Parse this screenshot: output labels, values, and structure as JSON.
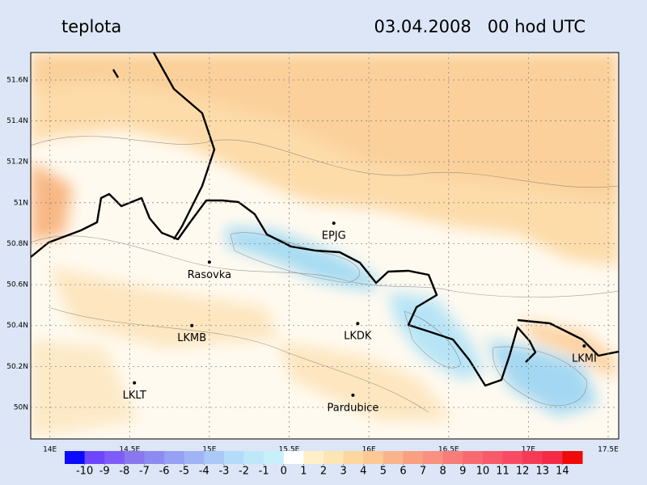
{
  "chart_data": {
    "type": "map",
    "title": "teplota",
    "subtitle": "03.04.2008   00 hod UTC",
    "xlim": [
      13.88,
      17.566
    ],
    "ylim": [
      49.846,
      51.734
    ],
    "xticks": [
      {
        "value": 14,
        "label": "14E"
      },
      {
        "value": 14.5,
        "label": "14.5E"
      },
      {
        "value": 15,
        "label": "15E"
      },
      {
        "value": 15.5,
        "label": "15.5E"
      },
      {
        "value": 16,
        "label": "16E"
      },
      {
        "value": 16.5,
        "label": "16.5E"
      },
      {
        "value": 17,
        "label": "17E"
      },
      {
        "value": 17.5,
        "label": "17.5E"
      }
    ],
    "yticks": [
      {
        "value": 50,
        "label": "50N"
      },
      {
        "value": 50.2,
        "label": "50.2N"
      },
      {
        "value": 50.4,
        "label": "50.4N"
      },
      {
        "value": 50.6,
        "label": "50.6N"
      },
      {
        "value": 50.8,
        "label": "50.8N"
      },
      {
        "value": 51,
        "label": "51N"
      },
      {
        "value": 51.2,
        "label": "51.2N"
      },
      {
        "value": 51.4,
        "label": "51.4N"
      },
      {
        "value": 51.6,
        "label": "51.6N"
      }
    ],
    "grid": true,
    "stations": {
      "names": [
        "EPJG",
        "Rasovka",
        "LKMB",
        "LKDK",
        "LKMI",
        "LKLT",
        "Pardubice"
      ],
      "lon": [
        15.78,
        15.0,
        14.89,
        15.93,
        17.35,
        14.53,
        15.9
      ],
      "lat": [
        50.9,
        50.71,
        50.4,
        50.41,
        50.3,
        50.12,
        50.06
      ]
    },
    "colorbar": {
      "ticks": [
        -10,
        -9,
        -8,
        -7,
        -6,
        -5,
        -4,
        -3,
        -2,
        -1,
        0,
        1,
        2,
        3,
        4,
        5,
        6,
        7,
        8,
        9,
        10,
        11,
        12,
        13,
        14
      ],
      "colors": [
        "#0a0aff",
        "#6e46ff",
        "#7e5cf8",
        "#8a78f0",
        "#8c8cf0",
        "#96a0f5",
        "#a0b4f5",
        "#aac8f8",
        "#b4dcfa",
        "#bee8fa",
        "#c8f0fa",
        "#ffffff",
        "#fff0c8",
        "#fde6b4",
        "#fcd7a0",
        "#fbc896",
        "#fab48c",
        "#faa082",
        "#f99080",
        "#f87c78",
        "#f86a70",
        "#f85a6a",
        "#f84a62",
        "#f63a56",
        "#f42a46",
        "#f00a0a"
      ]
    }
  }
}
